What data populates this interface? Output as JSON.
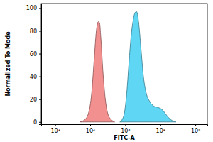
{
  "chart_data": {
    "type": "area",
    "x_label": "FITC-A",
    "y_label": "Normalized To Mode",
    "log": "x",
    "grid": false,
    "xlim": [
      4,
      220000
    ],
    "ylim": [
      -2,
      104
    ],
    "xticks": [
      {
        "value": 10,
        "label": "10¹"
      },
      {
        "value": 100,
        "label": "10²"
      },
      {
        "value": 1000,
        "label": "10³"
      },
      {
        "value": 10000,
        "label": "10⁴"
      },
      {
        "value": 100000,
        "label": "10⁵"
      }
    ],
    "yticks": [
      0,
      20,
      40,
      60,
      80,
      100
    ],
    "series": [
      {
        "color": "#f2908f",
        "x": [
          50,
          70,
          90,
          110,
          130,
          150,
          170,
          185,
          200,
          230,
          270,
          320,
          400,
          500
        ],
        "values": [
          0,
          2,
          8,
          25,
          55,
          80,
          88,
          87,
          75,
          45,
          20,
          7,
          2,
          0
        ]
      },
      {
        "color": "#5fd6f4",
        "x": [
          700,
          900,
          1100,
          1300,
          1500,
          1700,
          1900,
          2100,
          2400,
          2800,
          3300,
          4000,
          5000,
          6500,
          8000,
          10000,
          12000,
          15000,
          20000,
          28000
        ],
        "values": [
          0,
          5,
          25,
          55,
          78,
          90,
          96,
          97,
          88,
          65,
          40,
          25,
          18,
          14,
          13,
          12,
          10,
          6,
          2,
          0
        ]
      }
    ]
  }
}
